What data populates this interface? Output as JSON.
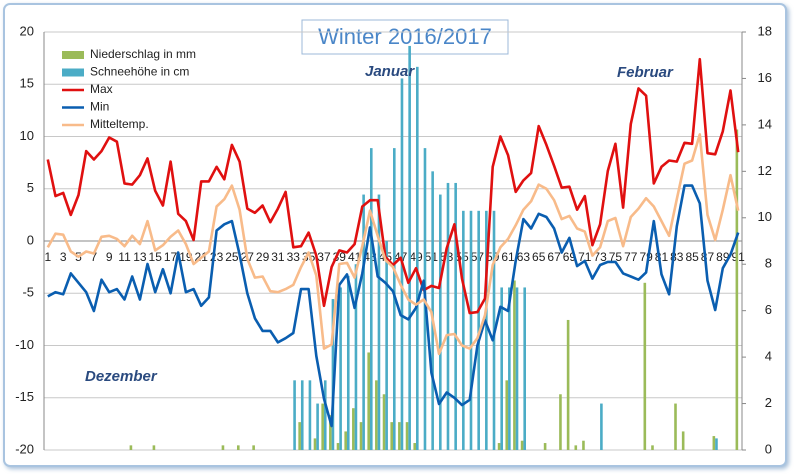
{
  "chart_data": {
    "type": "combo",
    "title": "Winter 2016/2017",
    "categories": [
      "1",
      null,
      "3",
      null,
      "5",
      null,
      "7",
      null,
      "9",
      null,
      "11",
      null,
      "13",
      null,
      "15",
      null,
      "17",
      null,
      "19",
      null,
      "21",
      null,
      "23",
      null,
      "25",
      null,
      "27",
      null,
      "29",
      null,
      "31",
      null,
      "33",
      null,
      "35",
      null,
      "37",
      null,
      "39",
      null,
      "41",
      null,
      "43",
      null,
      "45",
      null,
      "47",
      null,
      "49",
      null,
      "51",
      null,
      "53",
      null,
      "55",
      null,
      "57",
      null,
      "59",
      null,
      "61",
      null,
      "63",
      null,
      "65",
      null,
      "67",
      null,
      "69",
      null,
      "71",
      null,
      "73",
      null,
      "75",
      null,
      "77",
      null,
      "79",
      null,
      "81",
      null,
      "83",
      null,
      "85",
      null,
      "87",
      null,
      "89",
      null,
      "91"
    ],
    "annotations": [
      "Dezember",
      "Januar",
      "Februar"
    ],
    "ylim": [
      -20,
      20
    ],
    "yticks": [
      -20,
      -15,
      -10,
      -5,
      0,
      5,
      10,
      15,
      20
    ],
    "y2lim": [
      0,
      18
    ],
    "y2ticks": [
      0,
      2,
      4,
      6,
      8,
      10,
      12,
      14,
      16,
      18
    ],
    "grid": true,
    "legend": "top-left",
    "series": [
      {
        "name": "Niederschlag in mm",
        "type": "bar",
        "axis": "y2",
        "color": "#9bbb59",
        "values": [
          0,
          0,
          0,
          0,
          0,
          0,
          0,
          0,
          0,
          0,
          0,
          0.2,
          0,
          0,
          0.2,
          0,
          0,
          0,
          0,
          0,
          0,
          0,
          0,
          0.2,
          0,
          0.2,
          0,
          0.2,
          0,
          0,
          0,
          0,
          0,
          1.2,
          0,
          0.5,
          2,
          1.5,
          0.3,
          0.8,
          1.8,
          1.2,
          4.2,
          3,
          2.4,
          1.2,
          1.2,
          1.2,
          0.3,
          0,
          0,
          0,
          0,
          0,
          0,
          0,
          0,
          0,
          0,
          0.3,
          3,
          7.3,
          0.4,
          0,
          0,
          0.3,
          0,
          2.4,
          5.6,
          0.2,
          0.4,
          0,
          0,
          0,
          0,
          0,
          0,
          0,
          7.2,
          0.2,
          0,
          0,
          2,
          0.8,
          0,
          0,
          0,
          0.6,
          0,
          0,
          13.8
        ]
      },
      {
        "name": "Schneehöhe in cm",
        "type": "bar",
        "axis": "y2",
        "color": "#4bacc6",
        "values": [
          0,
          0,
          0,
          0,
          0,
          0,
          0,
          0,
          0,
          0,
          0,
          0,
          0,
          0,
          0,
          0,
          0,
          0,
          0,
          0,
          0,
          0,
          0,
          0,
          0,
          0,
          0,
          0,
          0,
          0,
          0,
          0,
          3,
          3,
          3,
          2,
          3,
          6.5,
          7,
          7.5,
          8,
          11,
          13,
          11,
          9,
          13,
          16,
          17.4,
          16.5,
          13,
          12,
          11,
          11.5,
          11.5,
          10.3,
          10.3,
          10.3,
          10.3,
          10.3,
          7,
          7,
          7,
          7,
          0,
          0,
          0,
          0,
          0,
          0,
          0,
          0,
          0,
          2,
          0,
          0,
          0,
          0,
          0,
          0,
          0,
          0,
          0,
          0,
          0,
          0,
          0,
          0,
          0.5,
          0,
          0,
          0
        ]
      },
      {
        "name": "Max",
        "type": "line",
        "color": "#e01010",
        "values": [
          7.8,
          4.3,
          4.6,
          2.5,
          4.4,
          8.6,
          7.8,
          8.6,
          9.9,
          9.5,
          5.5,
          5.4,
          6.3,
          7.9,
          4.8,
          3.4,
          7.6,
          2.6,
          1.9,
          0.1,
          5.7,
          5.7,
          7.1,
          5.9,
          9.2,
          7.6,
          3.1,
          2.7,
          3.4,
          1.8,
          3.1,
          4.7,
          -0.6,
          -0.5,
          0.8,
          -1.4,
          -6.2,
          -2.5,
          -0.9,
          -1.1,
          -0.3,
          3.3,
          3.9,
          3.9,
          -1.5,
          -2.3,
          -1.6,
          -4,
          -2.6,
          -4.7,
          -4.3,
          -4.5,
          -0.7,
          1.6,
          -3.6,
          -6.9,
          -6.8,
          -5.5,
          7.1,
          10,
          8.2,
          4.7,
          5.8,
          6.5,
          11,
          9.2,
          7.2,
          5.1,
          5.2,
          3,
          4.3,
          -0.4,
          1.6,
          6.7,
          9.3,
          3.2,
          11.2,
          14.6,
          13.9,
          5.5,
          7.1,
          7.7,
          7.6,
          9.4,
          9.3,
          17.4,
          8.4,
          8.3,
          10.5,
          14.4,
          8.5
        ]
      },
      {
        "name": "Min",
        "type": "line",
        "color": "#0a5eb0",
        "values": [
          -5.3,
          -4.9,
          -5.1,
          -3.1,
          -4,
          -4.9,
          -6.7,
          -3.7,
          -4.9,
          -4.6,
          -5.6,
          -3.4,
          -5.6,
          -2.2,
          -4.9,
          -2.7,
          -5,
          -1.1,
          -4.9,
          -4.6,
          -6.2,
          -5.4,
          1,
          1.6,
          1.9,
          -1.3,
          -5,
          -7.4,
          -8.6,
          -8.6,
          -9.7,
          -9.3,
          -8.8,
          -4.6,
          -4.6,
          -11,
          -15.1,
          -17.7,
          -4.2,
          -3.2,
          -6.4,
          -3.1,
          1.3,
          -3.4,
          -4,
          -4.8,
          -7.1,
          -7.5,
          -6.4,
          -3.8,
          -12.6,
          -15.6,
          -14.5,
          -15,
          -15.7,
          -15.2,
          -10,
          -7.6,
          -9.5,
          -6.3,
          -6.7,
          -1.9,
          2.1,
          1.2,
          2.6,
          2.3,
          1.2,
          -1.1,
          0.3,
          -2.4,
          -1.9,
          -3.6,
          -2.3,
          -2,
          -2,
          -3.1,
          -3.4,
          -3.7,
          -3,
          1.9,
          -3.2,
          -5.1,
          1.4,
          5.3,
          5.3,
          3.6,
          -3.8,
          -6.6,
          -2.6,
          -1.3,
          0.8
        ]
      },
      {
        "name": "Mitteltemp.",
        "type": "line",
        "color": "#f8bb8a",
        "values": [
          -0.6,
          0.7,
          0.6,
          -1,
          -1.5,
          -1,
          -1.2,
          0.4,
          0.5,
          0.2,
          -0.5,
          0.5,
          -0.3,
          1.9,
          -0.9,
          -0.4,
          0.4,
          1,
          -0.3,
          -2.2,
          -1.6,
          -1,
          3.3,
          4,
          5.3,
          3,
          -1.7,
          -3.5,
          -3.4,
          -4.8,
          -4.9,
          -4.6,
          -4.2,
          -2.5,
          -1.1,
          -3.3,
          -10.3,
          -9.9,
          -2.2,
          -2.1,
          -3.5,
          -0.5,
          2.9,
          0.5,
          -1.8,
          -2.5,
          -4.2,
          -5.6,
          -6.1,
          -5.6,
          -6.8,
          -10.8,
          -9,
          -8.9,
          -10,
          -10.3,
          -9.3,
          -7.1,
          -2.3,
          -0.6,
          0.2,
          1.5,
          3,
          3.8,
          5.4,
          5,
          3.9,
          2.1,
          2.4,
          1.2,
          0.9,
          -1.4,
          -0.6,
          1.9,
          2.2,
          -0.5,
          2.3,
          3.1,
          4.1,
          3.3,
          1.9,
          0.5,
          4,
          7.4,
          7.7,
          10.2,
          2.5,
          0.1,
          3,
          6.3,
          2.9
        ]
      }
    ]
  }
}
